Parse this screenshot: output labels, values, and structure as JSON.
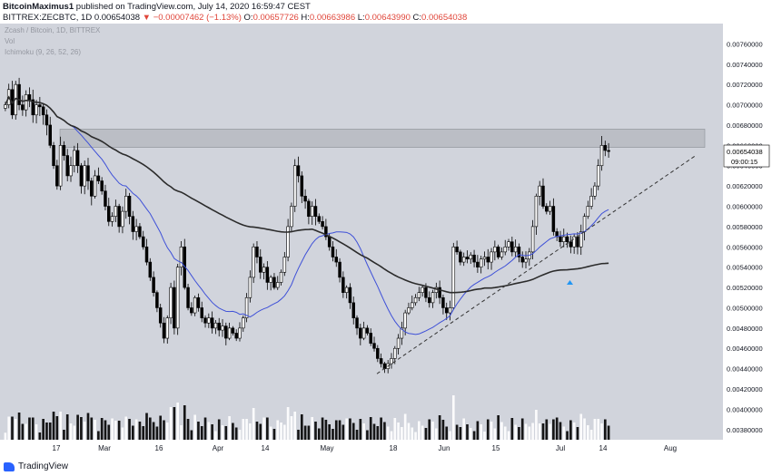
{
  "header": {
    "publisher_user": "BitcoinMaximus1",
    "publisher_text": "published on TradingView.com, July 14, 2020 16:59:47 CEST",
    "symbol_line": "BITTREX:ZECBTC, 1D",
    "last": "0.00654038",
    "change": "▼ −0.00007462 (−1.13%)",
    "open_label": "O:",
    "open": "0.00657726",
    "high_label": "H:",
    "high": "0.00663986",
    "low_label": "L:",
    "low": "0.00643990",
    "close_label": "C:",
    "close": "0.00654038"
  },
  "legend": {
    "title": "Zcash / Bitcoin, 1D, BITTREX",
    "vol": "Vol",
    "ichimoku": "Ichimoku (9, 26, 52, 26)"
  },
  "price_tag": {
    "value": "0.00654038",
    "countdown": "09:00:15"
  },
  "footer": {
    "logo_text": "TradingView"
  },
  "colors": {
    "background": "#d1d4dc",
    "up_candle": "#ffffff",
    "down_candle": "#000000",
    "ma_blue": "#3f51d8",
    "ma_dark": "#2b2b2b",
    "resistance_zone": "#a9acb3",
    "marker": "#2196f3"
  },
  "chart_data": {
    "type": "candlestick",
    "symbol": "ZECBTC",
    "timeframe": "1D",
    "y_axis_ticks": [
      "0.00760000",
      "0.00740000",
      "0.00720000",
      "0.00700000",
      "0.00680000",
      "0.00660000",
      "0.00640000",
      "0.00620000",
      "0.00600000",
      "0.00580000",
      "0.00560000",
      "0.00540000",
      "0.00520000",
      "0.00500000",
      "0.00480000",
      "0.00460000",
      "0.00440000",
      "0.00420000",
      "0.00400000",
      "0.00380000"
    ],
    "x_axis_ticks": [
      "17",
      "Mar",
      "16",
      "Apr",
      "14",
      "May",
      "18",
      "Jun",
      "15",
      "Jul",
      "14",
      "Aug"
    ],
    "ylim": [
      0.0037,
      0.0078
    ],
    "resistance_zone": [
      0.00658,
      0.00676
    ],
    "ascending_support": [
      [
        0.00435,
        "May 12"
      ],
      [
        0.0065,
        "Jul 25"
      ]
    ],
    "close_series": [
      0.007,
      0.00715,
      0.0069,
      0.0072,
      0.007,
      0.00695,
      0.0071,
      0.00705,
      0.0069,
      0.007,
      0.00698,
      0.0069,
      0.0068,
      0.0066,
      0.0064,
      0.0062,
      0.0066,
      0.0065,
      0.0063,
      0.0064,
      0.00655,
      0.0064,
      0.0062,
      0.0064,
      0.00625,
      0.0061,
      0.0063,
      0.00625,
      0.00615,
      0.006,
      0.00585,
      0.0059,
      0.006,
      0.0058,
      0.00595,
      0.0061,
      0.0059,
      0.00575,
      0.0058,
      0.0057,
      0.0056,
      0.00545,
      0.0053,
      0.00515,
      0.005,
      0.00485,
      0.0047,
      0.0049,
      0.0052,
      0.0048,
      0.0054,
      0.0056,
      0.0052,
      0.005,
      0.00495,
      0.0051,
      0.005,
      0.0049,
      0.00485,
      0.0049,
      0.0048,
      0.00485,
      0.00478,
      0.00482,
      0.0047,
      0.0048,
      0.00475,
      0.0047,
      0.0048,
      0.0049,
      0.0051,
      0.0053,
      0.0056,
      0.0055,
      0.00535,
      0.0054,
      0.00525,
      0.0053,
      0.0052,
      0.00525,
      0.00535,
      0.0055,
      0.0058,
      0.006,
      0.0064,
      0.0063,
      0.0061,
      0.00605,
      0.0059,
      0.006,
      0.0059,
      0.00585,
      0.0058,
      0.0057,
      0.0056,
      0.0055,
      0.00545,
      0.0053,
      0.00515,
      0.0052,
      0.00505,
      0.0049,
      0.0048,
      0.0047,
      0.0048,
      0.00475,
      0.00465,
      0.0046,
      0.0045,
      0.00445,
      0.0044,
      0.00445,
      0.0045,
      0.0046,
      0.0047,
      0.0048,
      0.00495,
      0.005,
      0.00505,
      0.0051,
      0.00515,
      0.0052,
      0.0051,
      0.00505,
      0.00515,
      0.0052,
      0.0051,
      0.005,
      0.00495,
      0.005,
      0.0056,
      0.00555,
      0.00545,
      0.0055,
      0.00548,
      0.00552,
      0.00545,
      0.0054,
      0.00548,
      0.0055,
      0.00545,
      0.00555,
      0.0056,
      0.0055,
      0.00555,
      0.0056,
      0.00565,
      0.00555,
      0.0056,
      0.0055,
      0.00545,
      0.00548,
      0.00555,
      0.0058,
      0.0061,
      0.0062,
      0.006,
      0.00595,
      0.006,
      0.00575,
      0.0057,
      0.00565,
      0.0057,
      0.00565,
      0.0056,
      0.0057,
      0.0056,
      0.00575,
      0.0059,
      0.006,
      0.0061,
      0.0062,
      0.0064,
      0.0066,
      0.00655,
      0.00654
    ]
  }
}
